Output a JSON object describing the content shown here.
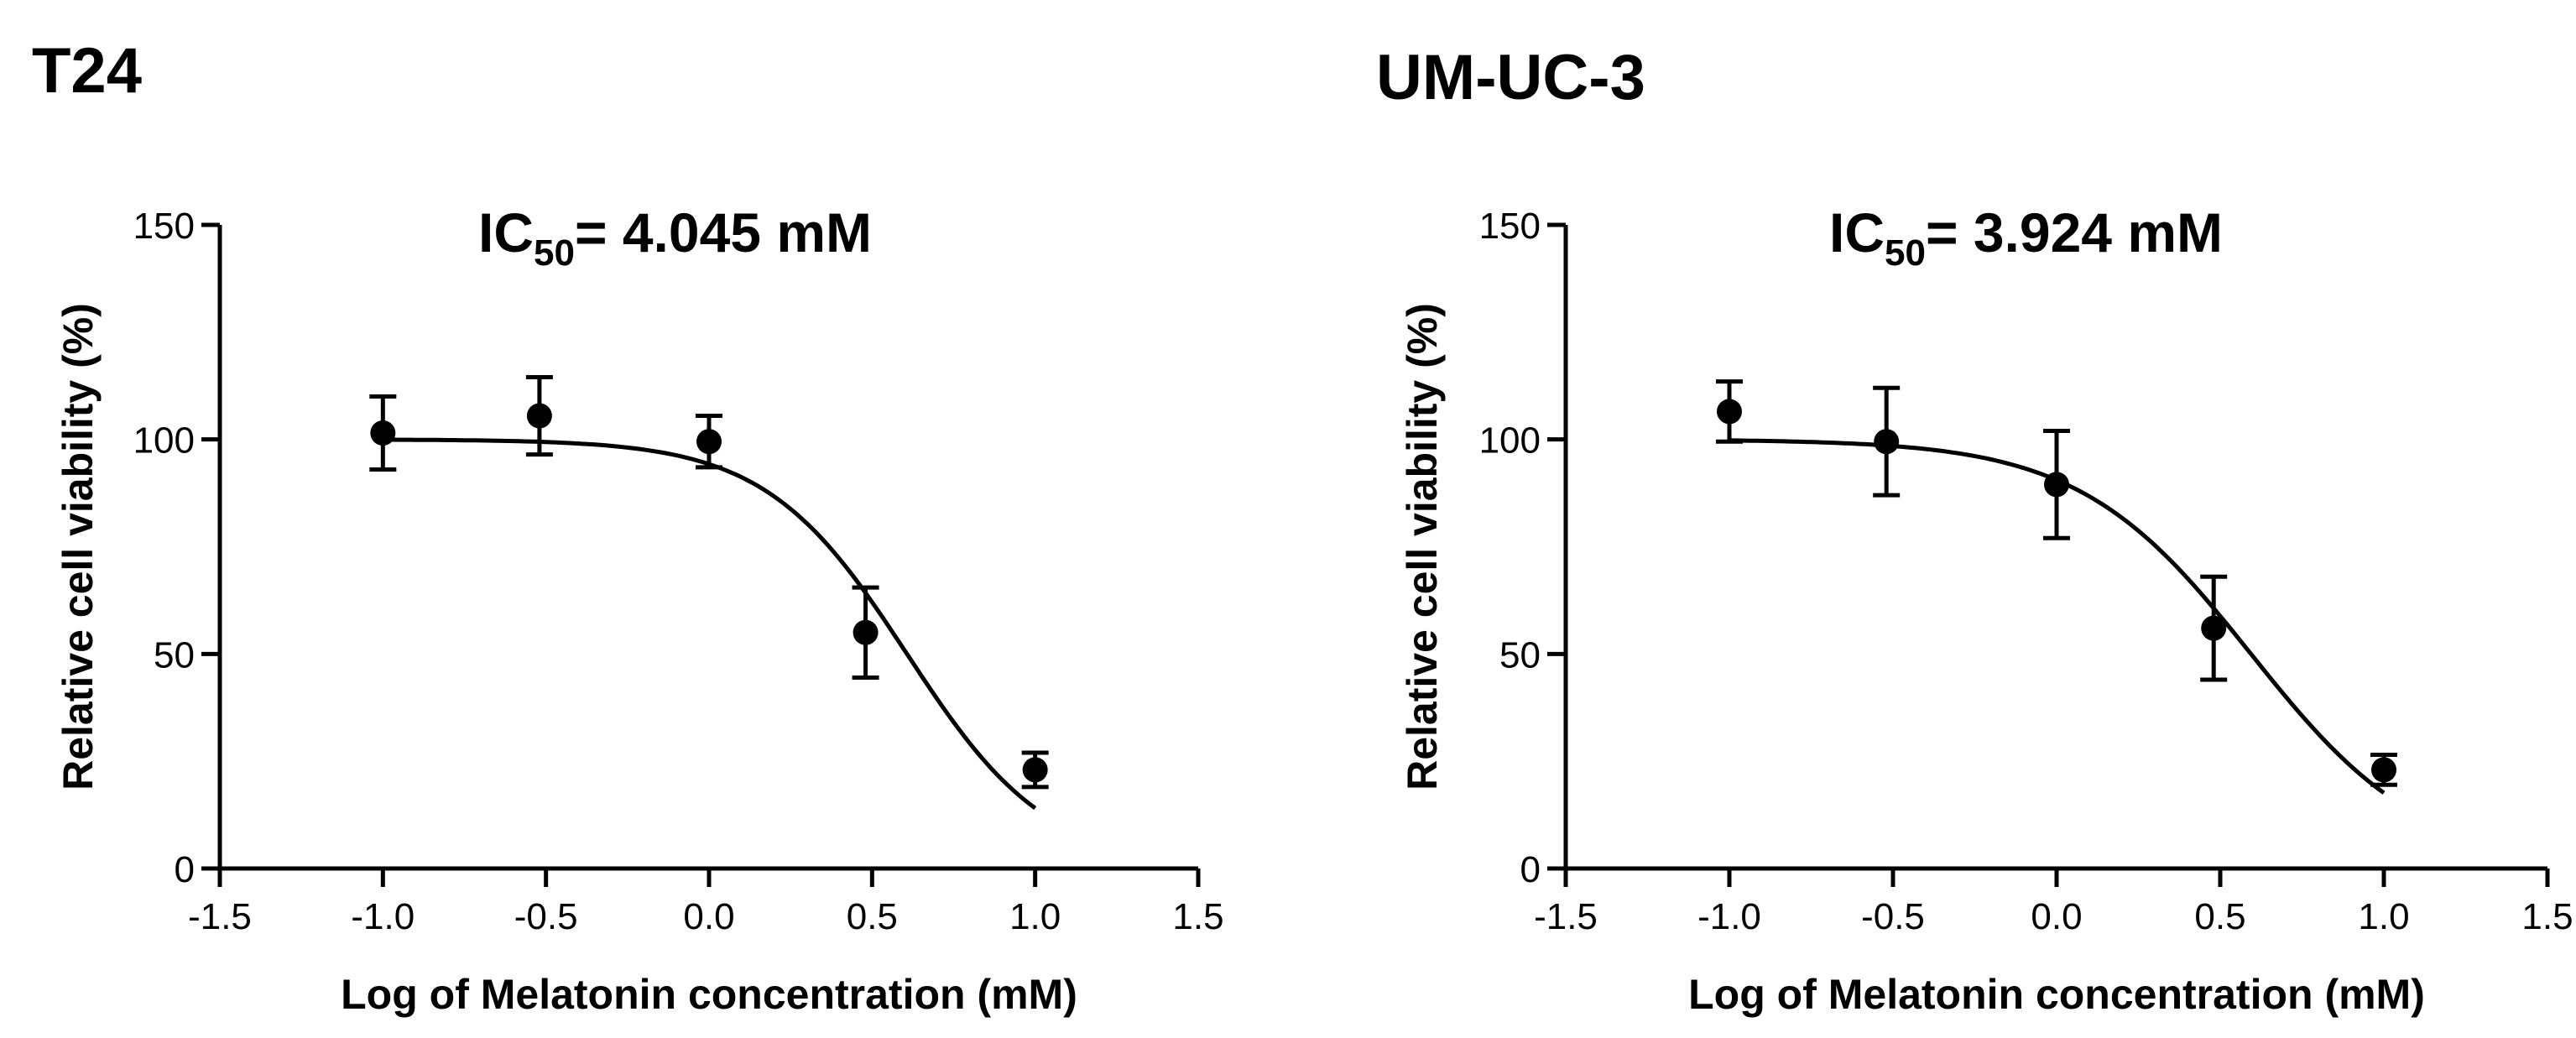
{
  "chart_data": [
    {
      "type": "scatter",
      "panel_label": "T24",
      "annotation": {
        "prefix": "IC",
        "subscript": "50",
        "suffix": "= 4.045 mM"
      },
      "xlabel": "Log of Melatonin concentration (mM)",
      "ylabel": "Relative cell viability (%)",
      "xlim": [
        -1.5,
        1.5
      ],
      "ylim": [
        0,
        150
      ],
      "xticks": [
        "-1.5",
        "-1.0",
        "-0.5",
        "0.0",
        "0.5",
        "1.0",
        "1.5"
      ],
      "yticks": [
        "0",
        "50",
        "100",
        "150"
      ],
      "grid": false,
      "legend": "none",
      "points": [
        {
          "x": -1.0,
          "y": 101.5,
          "err": 8.5
        },
        {
          "x": -0.52,
          "y": 105.5,
          "err": 9
        },
        {
          "x": 0.0,
          "y": 99.5,
          "err": 6
        },
        {
          "x": 0.48,
          "y": 55.0,
          "err": 10.5
        },
        {
          "x": 1.0,
          "y": 23.0,
          "err": 4
        }
      ],
      "fit": {
        "type": "sigmoid",
        "top": 100,
        "bottom": 0,
        "log_ic50": 0.607,
        "hill": -2.0
      }
    },
    {
      "type": "scatter",
      "panel_label": "UM-UC-3",
      "annotation": {
        "prefix": "IC",
        "subscript": "50",
        "suffix": "= 3.924 mM"
      },
      "xlabel": "Log of Melatonin concentration (mM)",
      "ylabel": "Relative cell viability (%)",
      "xlim": [
        -1.5,
        1.5
      ],
      "ylim": [
        0,
        150
      ],
      "xticks": [
        "-1.5",
        "-1.0",
        "-0.5",
        "0.0",
        "0.5",
        "1.0",
        "1.5"
      ],
      "yticks": [
        "0",
        "50",
        "100",
        "150"
      ],
      "grid": false,
      "legend": "none",
      "points": [
        {
          "x": -1.0,
          "y": 106.5,
          "err": 7
        },
        {
          "x": -0.52,
          "y": 99.5,
          "err": 12.5
        },
        {
          "x": 0.0,
          "y": 89.5,
          "err": 12.5
        },
        {
          "x": 0.48,
          "y": 56.0,
          "err": 12
        },
        {
          "x": 1.0,
          "y": 23.0,
          "err": 3.5
        }
      ],
      "fit": {
        "type": "sigmoid",
        "top": 100,
        "bottom": 0,
        "log_ic50": 0.594,
        "hill": -1.65
      }
    }
  ]
}
